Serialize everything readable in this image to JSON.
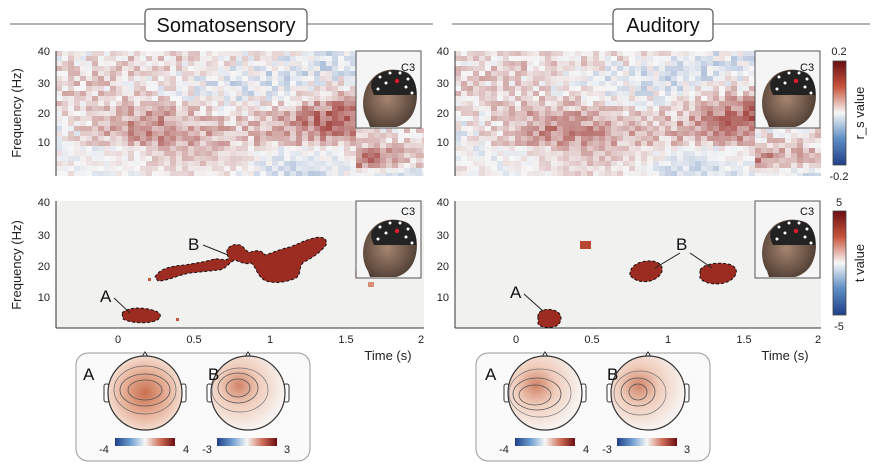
{
  "panels": [
    {
      "title": "Somatosensory"
    },
    {
      "title": "Auditory"
    }
  ],
  "colors": {
    "negative": "#2c5aa0",
    "neutral": "#f4f4f4",
    "positive": "#8b1a1a",
    "cluster_fill": "#9c2b21",
    "masked_background": "#f1f1f0"
  },
  "icons": [
    "head-model-icon",
    "electrode-marker-icon"
  ],
  "electrode_label": "C3",
  "cluster_labels": [
    "A",
    "B"
  ],
  "chart_data": [
    {
      "type": "heatmap",
      "panel": "Somatosensory",
      "row": "correlation",
      "ylabel": "Frequency (Hz)",
      "yticks": [
        "10",
        "20",
        "30",
        "40"
      ],
      "ylim": [
        1,
        40
      ],
      "xlim": [
        -0.4,
        2
      ],
      "note": "time-frequency map, dominant positive values around 10-30 Hz"
    },
    {
      "type": "heatmap",
      "panel": "Auditory",
      "row": "correlation",
      "ylabel": "Frequency (Hz)",
      "yticks": [
        "10",
        "20",
        "30",
        "40"
      ],
      "ylim": [
        1,
        40
      ],
      "xlim": [
        -0.4,
        2
      ]
    },
    {
      "type": "heatmap",
      "panel": "Somatosensory",
      "row": "t-statistics",
      "ylabel": "Frequency (Hz)",
      "xlabel": "Time (s)",
      "xticks": [
        "0",
        "0.5",
        "1",
        "1.5",
        "2"
      ],
      "yticks": [
        "10",
        "20",
        "30",
        "40"
      ],
      "xlim": [
        -0.4,
        2
      ],
      "ylim": [
        1,
        40
      ],
      "clusters": [
        {
          "label": "A",
          "time": [
            0.02,
            0.28
          ],
          "freq": [
            3,
            7
          ]
        },
        {
          "label": "B",
          "time": [
            0.2,
            1.35
          ],
          "freq": [
            12,
            28
          ]
        }
      ]
    },
    {
      "type": "heatmap",
      "panel": "Auditory",
      "row": "t-statistics",
      "ylabel": "Frequency (Hz)",
      "xlabel": "Time (s)",
      "xticks": [
        "0",
        "0.5",
        "1",
        "1.5",
        "2"
      ],
      "yticks": [
        "10",
        "20",
        "30",
        "40"
      ],
      "xlim": [
        -0.4,
        2
      ],
      "ylim": [
        1,
        40
      ],
      "clusters": [
        {
          "label": "A",
          "time": [
            0.15,
            0.3
          ],
          "freq": [
            1,
            5
          ]
        },
        {
          "label": "B",
          "time": [
            0.75,
            1.45
          ],
          "freq": [
            13,
            21
          ]
        }
      ]
    }
  ],
  "colorbars": [
    {
      "label": "r_s value",
      "max": "0.2",
      "min": "-0.2"
    },
    {
      "label": "t value",
      "max": "5",
      "min": "-5"
    }
  ],
  "topomaps": [
    {
      "panel": "Somatosensory",
      "label": "A",
      "min": "-4",
      "max": "4"
    },
    {
      "panel": "Somatosensory",
      "label": "B",
      "min": "-3",
      "max": "3"
    },
    {
      "panel": "Auditory",
      "label": "A",
      "min": "-4",
      "max": "4"
    },
    {
      "panel": "Auditory",
      "label": "B",
      "min": "-3",
      "max": "3"
    }
  ]
}
